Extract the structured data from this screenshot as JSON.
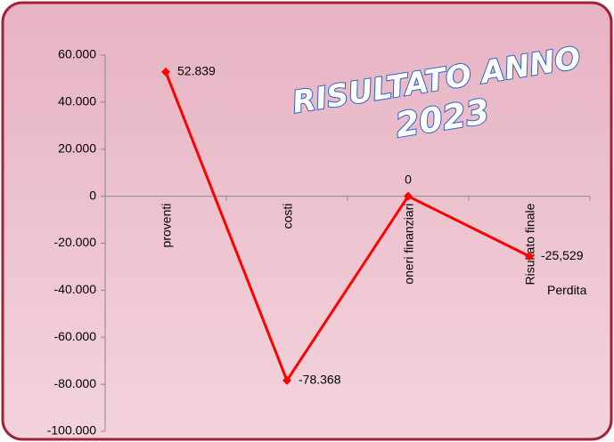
{
  "chart_data": {
    "type": "line",
    "title": "RISULTATO ANNO",
    "subtitle": "2023",
    "categories": [
      "proventi",
      "costi",
      "oneri finanziari",
      "Risultato finale"
    ],
    "values": [
      52839,
      -78368,
      0,
      -25529
    ],
    "value_labels": [
      "52.839",
      "-78.368",
      "0",
      "-25,529"
    ],
    "annotation": "Perdita",
    "color": "#ff0000",
    "ylim": [
      -100000,
      60000
    ],
    "yticks": [
      {
        "value": -100000,
        "label": "-100.000"
      },
      {
        "value": -80000,
        "label": "-80.000"
      },
      {
        "value": -60000,
        "label": "-60.000"
      },
      {
        "value": -40000,
        "label": "-40.000"
      },
      {
        "value": -20000,
        "label": "-20.000"
      },
      0,
      {
        "value": 20000,
        "label": "20.000"
      },
      {
        "value": 40000,
        "label": "40.000"
      },
      {
        "value": 60000,
        "label": "60.000"
      }
    ],
    "grid": false
  }
}
